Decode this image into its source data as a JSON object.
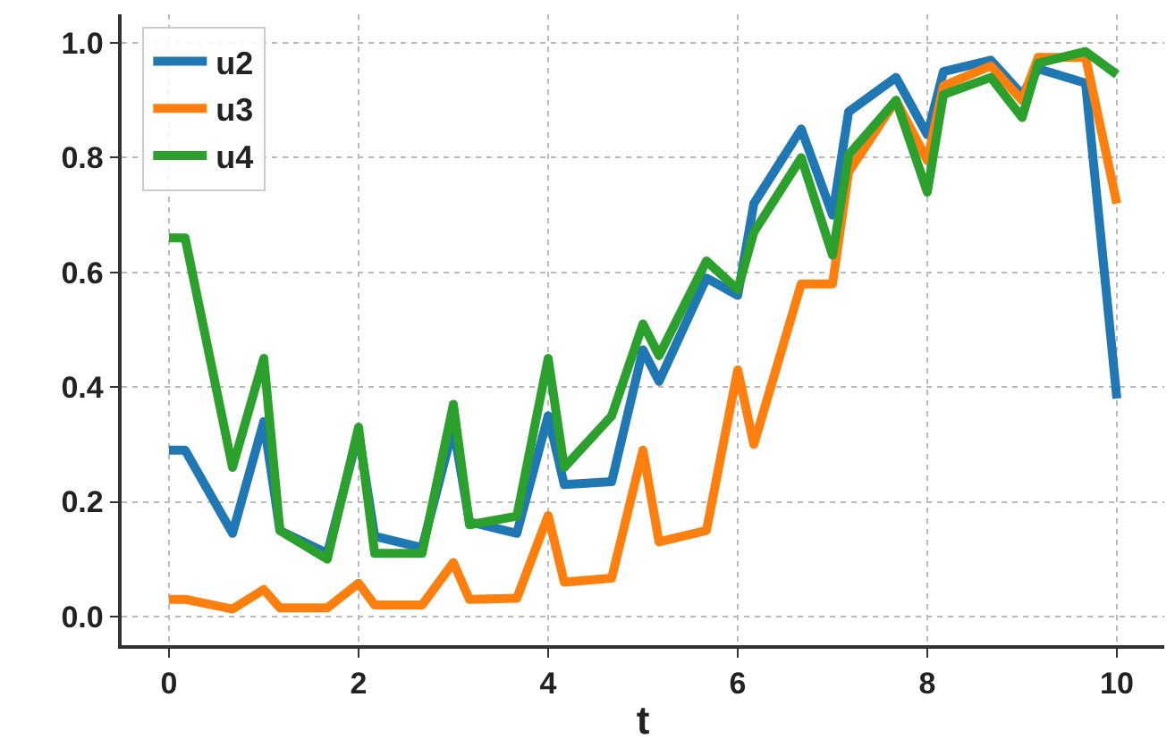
{
  "chart_data": {
    "type": "line",
    "xlabel": "t",
    "x": [
      0,
      0.17,
      0.67,
      1,
      1.17,
      1.67,
      2,
      2.17,
      2.67,
      3,
      3.17,
      3.67,
      4,
      4.17,
      4.67,
      5,
      5.17,
      5.67,
      6,
      6.17,
      6.67,
      7,
      7.17,
      7.67,
      8,
      8.17,
      8.67,
      9,
      9.17,
      9.67,
      10
    ],
    "series": [
      {
        "name": "u2",
        "color": "#1f77b4",
        "values": [
          0.29,
          0.29,
          0.145,
          0.34,
          0.15,
          0.11,
          0.32,
          0.14,
          0.12,
          0.33,
          0.165,
          0.145,
          0.35,
          0.23,
          0.235,
          0.465,
          0.41,
          0.59,
          0.56,
          0.72,
          0.85,
          0.7,
          0.88,
          0.94,
          0.84,
          0.95,
          0.97,
          0.91,
          0.955,
          0.93,
          0.38
        ]
      },
      {
        "name": "u3",
        "color": "#ff7f0e",
        "values": [
          0.03,
          0.03,
          0.013,
          0.047,
          0.015,
          0.015,
          0.058,
          0.02,
          0.02,
          0.094,
          0.03,
          0.032,
          0.176,
          0.06,
          0.067,
          0.29,
          0.13,
          0.15,
          0.43,
          0.3,
          0.58,
          0.58,
          0.775,
          0.9,
          0.795,
          0.925,
          0.96,
          0.9,
          0.975,
          0.975,
          0.72
        ]
      },
      {
        "name": "u4",
        "color": "#2ca02c",
        "values": [
          0.66,
          0.66,
          0.26,
          0.45,
          0.15,
          0.1,
          0.33,
          0.11,
          0.11,
          0.37,
          0.16,
          0.175,
          0.45,
          0.26,
          0.35,
          0.51,
          0.455,
          0.62,
          0.57,
          0.67,
          0.8,
          0.63,
          0.805,
          0.9,
          0.74,
          0.91,
          0.94,
          0.87,
          0.965,
          0.985,
          0.945
        ]
      }
    ],
    "xlim": [
      -0.5,
      10.5
    ],
    "xticks": [
      0,
      2,
      4,
      6,
      8,
      10
    ],
    "ylim": [
      -0.05,
      1.05
    ],
    "yticks": [
      {
        "value": 0,
        "label": "0.0"
      },
      {
        "value": 0.2,
        "label": "0.2"
      },
      {
        "value": 0.4,
        "label": "0.4"
      },
      {
        "value": 0.6,
        "label": "0.6"
      },
      {
        "value": 0.8,
        "label": "0.8"
      },
      {
        "value": 1,
        "label": "1.0"
      }
    ],
    "grid": true,
    "legend": "top left",
    "line_style": "solid"
  }
}
